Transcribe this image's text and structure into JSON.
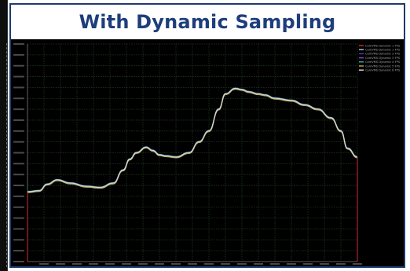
{
  "header": {
    "title": "With Dynamic Sampling"
  },
  "colors": {
    "title": "#1e3d7b",
    "frame": "#1e3a6e",
    "plot_background": "#000000",
    "grid": "#1f3a1f"
  },
  "chart_data": {
    "type": "line",
    "title": "With Dynamic Sampling",
    "xlabel": "",
    "ylabel": "",
    "grid": true,
    "legend_position": "top-right",
    "ylim": [
      0,
      1
    ],
    "x": [
      0,
      0.035,
      0.06,
      0.09,
      0.13,
      0.18,
      0.22,
      0.26,
      0.29,
      0.31,
      0.33,
      0.36,
      0.38,
      0.4,
      0.42,
      0.45,
      0.49,
      0.52,
      0.55,
      0.58,
      0.6,
      0.63,
      0.65,
      0.67,
      0.7,
      0.72,
      0.75,
      0.8,
      0.84,
      0.88,
      0.92,
      0.95,
      0.97,
      1.0
    ],
    "series": [
      {
        "name": "CamVMS Dynamic 1 FPS",
        "color": "#d03030"
      },
      {
        "name": "CamVMS Dynamic 1 FPS",
        "color": "#c8c8c8"
      },
      {
        "name": "CamVMS Dynamic 2 FPS",
        "color": "#3050c0"
      },
      {
        "name": "CamVMS Dynamic 3 FPS",
        "color": "#a040c0"
      },
      {
        "name": "CamVMS Dynamic 4 FPS",
        "color": "#30b0b0"
      },
      {
        "name": "CamVMS Dynamic 5 FPS",
        "color": "#c8b040"
      },
      {
        "name": "CamVMS Dynamic 6 FPS",
        "color": "#e0e0e0"
      }
    ],
    "values": [
      0.32,
      0.325,
      0.355,
      0.375,
      0.36,
      0.345,
      0.34,
      0.36,
      0.42,
      0.47,
      0.5,
      0.525,
      0.51,
      0.49,
      0.485,
      0.48,
      0.5,
      0.55,
      0.6,
      0.7,
      0.77,
      0.795,
      0.79,
      0.78,
      0.77,
      0.765,
      0.75,
      0.74,
      0.72,
      0.7,
      0.66,
      0.6,
      0.52,
      0.48
    ]
  }
}
